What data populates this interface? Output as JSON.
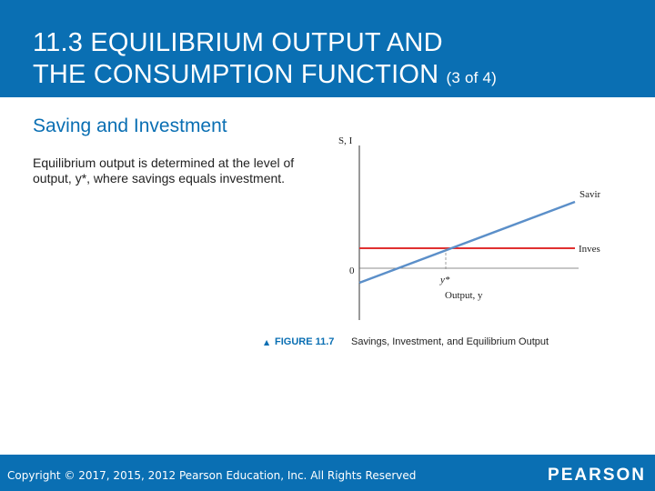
{
  "header": {
    "title_line1": "11.3 EQUILIBRIUM OUTPUT AND",
    "title_line2": "THE CONSUMPTION FUNCTION",
    "title_suffix": "(3 of 4)"
  },
  "slide": {
    "subtitle": "Saving and Investment",
    "body": "Equilibrium output is determined at the level of output, y*, where savings equals investment."
  },
  "figure": {
    "y_axis_label": "S, I",
    "x_axis_label": "Output, y",
    "origin_label": "0",
    "equilibrium_label": "y*",
    "savings_label": "Savings, S",
    "investment_label": "Investment, I",
    "figure_number": "FIGURE 11.7",
    "caption": "Savings, Investment, and Equilibrium Output",
    "colors": {
      "savings_line": "#5b8fc9",
      "investment_line": "#e03030",
      "figure_number": "#0a6fb3",
      "axis": "#333333"
    }
  },
  "footer": {
    "copyright": "Copyright © 2017, 2015, 2012 Pearson Education, Inc. All Rights Reserved",
    "logo": "PEARSON"
  },
  "theme": {
    "bar_color": "#0a6fb3"
  }
}
